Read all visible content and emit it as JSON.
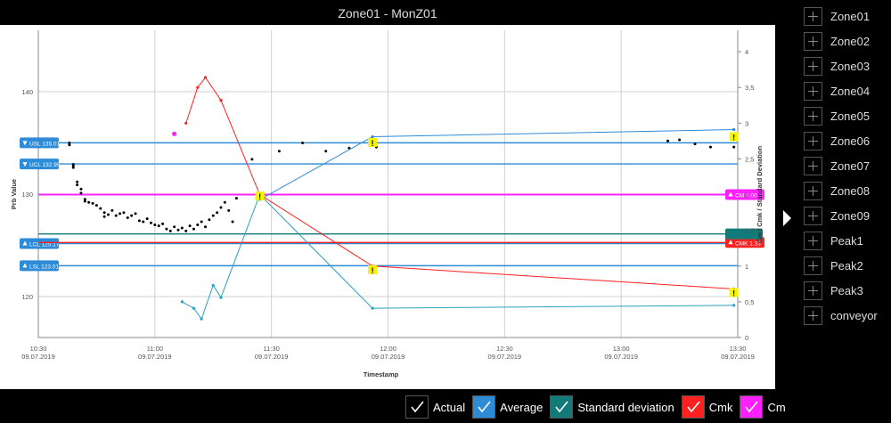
{
  "window": {
    "title": "Zone01 - MonZ01"
  },
  "side_panel": {
    "items": [
      "Zone01",
      "Zone02",
      "Zone03",
      "Zone04",
      "Zone05",
      "Zone06",
      "Zone07",
      "Zone08",
      "Zone09",
      "Peak1",
      "Peak2",
      "Peak3",
      "conveyor"
    ]
  },
  "legend": {
    "items": [
      {
        "label": "Actual",
        "color": "#000000"
      },
      {
        "label": "Average",
        "color": "#2e8bd8"
      },
      {
        "label": "Standard deviation",
        "color": "#137a7a"
      },
      {
        "label": "Cmk",
        "color": "#ff2020"
      },
      {
        "label": "Cm",
        "color": "#ff20ff"
      }
    ]
  },
  "chart_data": {
    "type": "line",
    "title": "Zone01 - MonZ01",
    "xlabel": "Timestamp",
    "ylabel": "Prb Value",
    "y2label": "Cm / Cmk / Standard Deviation",
    "x_ticks": [
      {
        "time": "10:30",
        "date": "09.07.2019"
      },
      {
        "time": "11:00",
        "date": "09.07.2019"
      },
      {
        "time": "11:30",
        "date": "09.07.2019"
      },
      {
        "time": "12:00",
        "date": "09.07.2019"
      },
      {
        "time": "12:30",
        "date": "09.07.2019"
      },
      {
        "time": "13:00",
        "date": "09.07.2019"
      },
      {
        "time": "13:30",
        "date": "09.07.2019"
      }
    ],
    "xlim": [
      "10:30",
      "13:30"
    ],
    "ylim": [
      116,
      146
    ],
    "y_ticks": [
      120,
      130,
      140
    ],
    "y2lim": [
      0,
      4.3
    ],
    "y2_ticks": [
      "0",
      "0,5",
      "1",
      "1,5",
      "2",
      "2,5",
      "3",
      "3,5",
      "4"
    ],
    "y2_tick_values": [
      0,
      0.5,
      1,
      1.5,
      2,
      2.5,
      3,
      3.5,
      4
    ],
    "grid": true,
    "limits": [
      {
        "label": "USL 135.01",
        "axis": "left",
        "value": 135.01,
        "color": "#2e8bd8",
        "direction": "down"
      },
      {
        "label": "UCL 132.95",
        "axis": "left",
        "value": 132.95,
        "color": "#2e8bd8",
        "direction": "down"
      },
      {
        "label": "LCL 125.17",
        "axis": "left",
        "value": 125.17,
        "color": "#2e8bd8",
        "direction": "up"
      },
      {
        "label": "LSL 123.01",
        "axis": "left",
        "value": 123.01,
        "color": "#2e8bd8",
        "direction": "up"
      },
      {
        "label": "CM 2.00",
        "axis": "right",
        "value": 2.0,
        "color": "#ff20ff",
        "direction": "up"
      },
      {
        "label": "CMK 1.33",
        "axis": "right",
        "value": 1.33,
        "color": "#ff2020",
        "direction": "up"
      },
      {
        "label": "",
        "axis": "right",
        "value": 1.45,
        "color": "#137a7a",
        "direction": "up"
      }
    ],
    "series": [
      {
        "name": "Actual",
        "axis": "left",
        "style": "scatter",
        "color": "#000000",
        "points": [
          [
            "10:38",
            134.8
          ],
          [
            "10:38",
            135.0
          ],
          [
            "10:39",
            132.8
          ],
          [
            "10:39",
            132.9
          ],
          [
            "10:39",
            132.6
          ],
          [
            "10:40",
            131.2
          ],
          [
            "10:40",
            130.9
          ],
          [
            "10:41",
            130.5
          ],
          [
            "10:41",
            130.1
          ],
          [
            "10:42",
            129.5
          ],
          [
            "10:42",
            129.3
          ],
          [
            "10:43",
            129.2
          ],
          [
            "10:44",
            129.1
          ],
          [
            "10:45",
            128.9
          ],
          [
            "10:46",
            128.6
          ],
          [
            "10:47",
            128.2
          ],
          [
            "10:47",
            127.8
          ],
          [
            "10:48",
            128.0
          ],
          [
            "10:49",
            128.4
          ],
          [
            "10:50",
            127.9
          ],
          [
            "10:51",
            128.1
          ],
          [
            "10:52",
            128.2
          ],
          [
            "10:53",
            127.7
          ],
          [
            "10:54",
            127.9
          ],
          [
            "10:55",
            128.1
          ],
          [
            "10:56",
            127.4
          ],
          [
            "10:57",
            127.3
          ],
          [
            "10:58",
            127.6
          ],
          [
            "10:59",
            127.2
          ],
          [
            "11:00",
            127.0
          ],
          [
            "11:01",
            126.9
          ],
          [
            "11:02",
            127.1
          ],
          [
            "11:03",
            126.6
          ],
          [
            "11:04",
            126.4
          ],
          [
            "11:05",
            126.8
          ],
          [
            "11:06",
            126.5
          ],
          [
            "11:07",
            126.7
          ],
          [
            "11:08",
            126.4
          ],
          [
            "11:09",
            126.9
          ],
          [
            "11:10",
            126.6
          ],
          [
            "11:11",
            127.0
          ],
          [
            "11:12",
            127.3
          ],
          [
            "11:13",
            126.8
          ],
          [
            "11:14",
            127.5
          ],
          [
            "11:15",
            127.9
          ],
          [
            "11:16",
            128.2
          ],
          [
            "11:17",
            128.7
          ],
          [
            "11:18",
            129.2
          ],
          [
            "11:19",
            128.4
          ],
          [
            "11:20",
            127.3
          ],
          [
            "11:21",
            129.6
          ],
          [
            "11:25",
            133.4
          ],
          [
            "11:32",
            134.2
          ],
          [
            "11:38",
            135.0
          ],
          [
            "11:44",
            134.2
          ],
          [
            "11:50",
            134.5
          ],
          [
            "11:57",
            134.6
          ],
          [
            "13:12",
            135.2
          ],
          [
            "13:15",
            135.3
          ],
          [
            "13:19",
            134.9
          ],
          [
            "13:23",
            134.6
          ],
          [
            "13:29",
            134.6
          ]
        ]
      },
      {
        "name": "Average",
        "axis": "right",
        "style": "line",
        "color": "#2e8bd8",
        "points": [
          [
            "11:27",
            1.93
          ],
          [
            "11:56",
            2.81
          ],
          [
            "13:29",
            2.91
          ]
        ]
      },
      {
        "name": "Standard deviation",
        "axis": "right",
        "style": "line",
        "color": "#2aa0c0",
        "points": [
          [
            "11:07",
            0.5
          ],
          [
            "11:10",
            0.41
          ],
          [
            "11:12",
            0.26
          ],
          [
            "11:15",
            0.73
          ],
          [
            "11:17",
            0.56
          ],
          [
            "11:27",
            2.0
          ],
          [
            "11:56",
            0.41
          ],
          [
            "13:29",
            0.45
          ]
        ]
      },
      {
        "name": "Cmk",
        "axis": "right",
        "style": "line",
        "color": "#ff2020",
        "points": [
          [
            "11:08",
            3.0
          ],
          [
            "11:11",
            3.5
          ],
          [
            "11:13",
            3.64
          ],
          [
            "11:17",
            3.32
          ],
          [
            "11:27",
            2.0
          ],
          [
            "11:56",
            1.0
          ],
          [
            "13:29",
            0.68
          ]
        ]
      },
      {
        "name": "Cm",
        "axis": "right",
        "style": "scatter",
        "color": "#ff20ff",
        "points": [
          [
            "11:05",
            2.85
          ]
        ]
      }
    ],
    "warning_markers": [
      {
        "time": "11:27",
        "value": 1.98,
        "axis": "right"
      },
      {
        "time": "11:56",
        "value": 2.73,
        "axis": "right"
      },
      {
        "time": "11:56",
        "value": 0.95,
        "axis": "right"
      },
      {
        "time": "13:29",
        "value": 2.81,
        "axis": "right"
      },
      {
        "time": "13:29",
        "value": 0.63,
        "axis": "right"
      }
    ],
    "warning_symbol": "!"
  }
}
